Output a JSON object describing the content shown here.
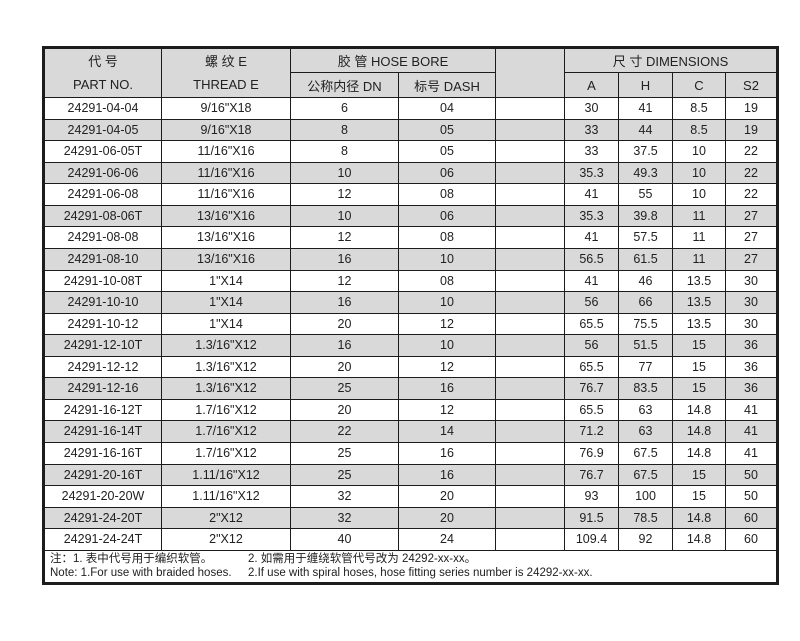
{
  "colors": {
    "border": "#1c1c1c",
    "stripe": "#d9d9d9",
    "header_bg": "#d9d9d9",
    "text": "#212121"
  },
  "table": {
    "header": {
      "part_no_zh": "代  号",
      "part_no_en": "PART NO.",
      "thread_zh": "螺 纹 E",
      "thread_en": "THREAD  E",
      "hose_bore": "胶 管  HOSE BORE",
      "dn": "公称内径 DN",
      "dash": "标号 DASH",
      "dimensions": "尺 寸 DIMENSIONS",
      "a": "A",
      "h": "H",
      "c": "C",
      "s2": "S2"
    },
    "rows": [
      {
        "part_no": "24291-04-04",
        "thread": "9/16\"X18",
        "dn": "6",
        "dash": "04",
        "a": "30",
        "h": "41",
        "c": "8.5",
        "s2": "19"
      },
      {
        "part_no": "24291-04-05",
        "thread": "9/16\"X18",
        "dn": "8",
        "dash": "05",
        "a": "33",
        "h": "44",
        "c": "8.5",
        "s2": "19"
      },
      {
        "part_no": "24291-06-05T",
        "thread": "11/16\"X16",
        "dn": "8",
        "dash": "05",
        "a": "33",
        "h": "37.5",
        "c": "10",
        "s2": "22"
      },
      {
        "part_no": "24291-06-06",
        "thread": "11/16\"X16",
        "dn": "10",
        "dash": "06",
        "a": "35.3",
        "h": "49.3",
        "c": "10",
        "s2": "22"
      },
      {
        "part_no": "24291-06-08",
        "thread": "11/16\"X16",
        "dn": "12",
        "dash": "08",
        "a": "41",
        "h": "55",
        "c": "10",
        "s2": "22"
      },
      {
        "part_no": "24291-08-06T",
        "thread": "13/16\"X16",
        "dn": "10",
        "dash": "06",
        "a": "35.3",
        "h": "39.8",
        "c": "11",
        "s2": "27"
      },
      {
        "part_no": "24291-08-08",
        "thread": "13/16\"X16",
        "dn": "12",
        "dash": "08",
        "a": "41",
        "h": "57.5",
        "c": "11",
        "s2": "27"
      },
      {
        "part_no": "24291-08-10",
        "thread": "13/16\"X16",
        "dn": "16",
        "dash": "10",
        "a": "56.5",
        "h": "61.5",
        "c": "11",
        "s2": "27"
      },
      {
        "part_no": "24291-10-08T",
        "thread": "1\"X14",
        "dn": "12",
        "dash": "08",
        "a": "41",
        "h": "46",
        "c": "13.5",
        "s2": "30"
      },
      {
        "part_no": "24291-10-10",
        "thread": "1\"X14",
        "dn": "16",
        "dash": "10",
        "a": "56",
        "h": "66",
        "c": "13.5",
        "s2": "30"
      },
      {
        "part_no": "24291-10-12",
        "thread": "1\"X14",
        "dn": "20",
        "dash": "12",
        "a": "65.5",
        "h": "75.5",
        "c": "13.5",
        "s2": "30"
      },
      {
        "part_no": "24291-12-10T",
        "thread": "1.3/16\"X12",
        "dn": "16",
        "dash": "10",
        "a": "56",
        "h": "51.5",
        "c": "15",
        "s2": "36"
      },
      {
        "part_no": "24291-12-12",
        "thread": "1.3/16\"X12",
        "dn": "20",
        "dash": "12",
        "a": "65.5",
        "h": "77",
        "c": "15",
        "s2": "36"
      },
      {
        "part_no": "24291-12-16",
        "thread": "1.3/16\"X12",
        "dn": "25",
        "dash": "16",
        "a": "76.7",
        "h": "83.5",
        "c": "15",
        "s2": "36"
      },
      {
        "part_no": "24291-16-12T",
        "thread": "1.7/16\"X12",
        "dn": "20",
        "dash": "12",
        "a": "65.5",
        "h": "63",
        "c": "14.8",
        "s2": "41"
      },
      {
        "part_no": "24291-16-14T",
        "thread": "1.7/16\"X12",
        "dn": "22",
        "dash": "14",
        "a": "71.2",
        "h": "63",
        "c": "14.8",
        "s2": "41"
      },
      {
        "part_no": "24291-16-16T",
        "thread": "1.7/16\"X12",
        "dn": "25",
        "dash": "16",
        "a": "76.9",
        "h": "67.5",
        "c": "14.8",
        "s2": "41"
      },
      {
        "part_no": "24291-20-16T",
        "thread": "1.11/16\"X12",
        "dn": "25",
        "dash": "16",
        "a": "76.7",
        "h": "67.5",
        "c": "15",
        "s2": "50"
      },
      {
        "part_no": "24291-20-20W",
        "thread": "1.11/16\"X12",
        "dn": "32",
        "dash": "20",
        "a": "93",
        "h": "100",
        "c": "15",
        "s2": "50"
      },
      {
        "part_no": "24291-24-20T",
        "thread": "2\"X12",
        "dn": "32",
        "dash": "20",
        "a": "91.5",
        "h": "78.5",
        "c": "14.8",
        "s2": "60"
      },
      {
        "part_no": "24291-24-24T",
        "thread": "2\"X12",
        "dn": "40",
        "dash": "24",
        "a": "109.4",
        "h": "92",
        "c": "14.8",
        "s2": "60"
      }
    ],
    "notes": {
      "zh_1": "注：1. 表中代号用于编织软管。",
      "zh_2": "2. 如需用于缠绕软管代号改为 24292-xx-xx。",
      "en_1": "Note: 1.For use with braided hoses.",
      "en_2": "2.If use with spiral hoses, hose fitting series number is 24292-xx-xx."
    }
  }
}
